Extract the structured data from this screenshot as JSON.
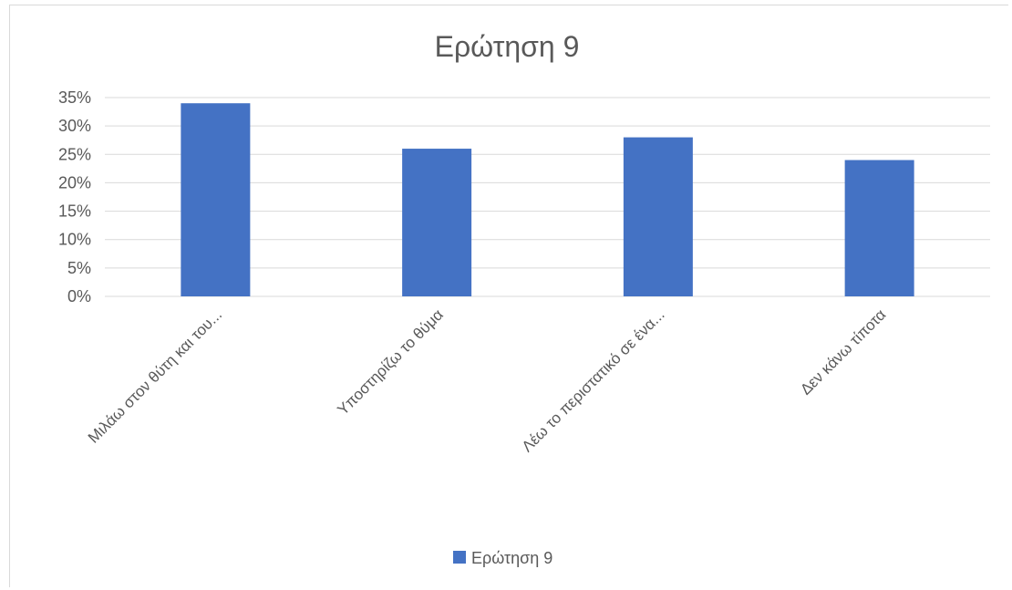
{
  "chart_data": {
    "type": "bar",
    "title": "Ερώτηση 9",
    "categories": [
      "Μιλάω στον θύτη και του...",
      "Υποστηρίζω το θύμα",
      "Λέω το περιστατικό σε ένα...",
      "Δεν κάνω τίποτα"
    ],
    "series": [
      {
        "name": "Ερώτηση 9",
        "values": [
          34,
          26,
          28,
          24
        ],
        "color": "#4472c4"
      }
    ],
    "y_ticks": [
      "0%",
      "5%",
      "10%",
      "15%",
      "20%",
      "25%",
      "30%",
      "35%"
    ],
    "ylim": [
      0,
      35
    ],
    "ystep": 5,
    "grid": true,
    "legend_position": "bottom",
    "xlabel": "",
    "ylabel": ""
  }
}
